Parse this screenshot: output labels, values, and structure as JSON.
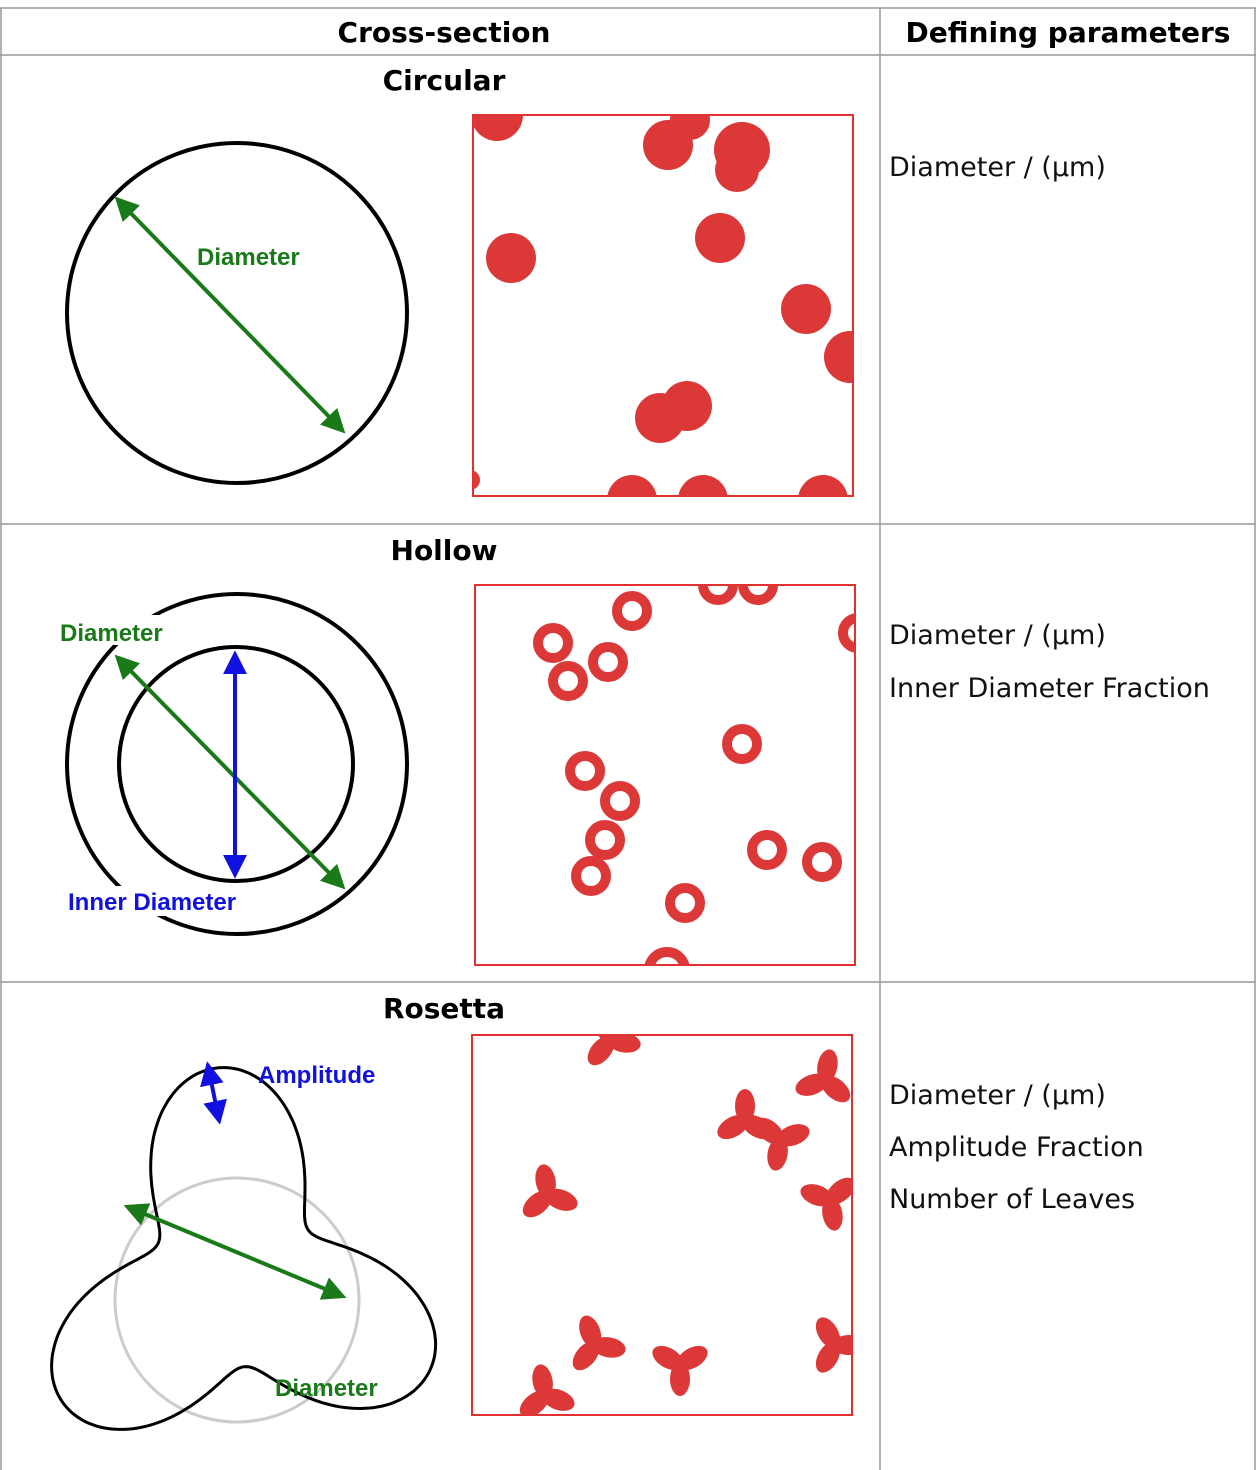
{
  "header": {
    "columns": [
      "Cross-section",
      "Defining parameters"
    ]
  },
  "rows": [
    {
      "title": "Circular",
      "diagram_labels": [
        "Diameter"
      ],
      "parameters": [
        "Diameter / (µm)"
      ]
    },
    {
      "title": "Hollow",
      "diagram_labels": [
        "Diameter",
        "Inner Diameter"
      ],
      "parameters": [
        "Diameter / (µm)",
        "Inner Diameter Fraction"
      ]
    },
    {
      "title": "Rosetta",
      "diagram_labels": [
        "Amplitude",
        "Diameter"
      ],
      "parameters": [
        "Diameter / (µm)",
        "Amplitude Fraction",
        "Number of Leaves"
      ]
    }
  ]
}
